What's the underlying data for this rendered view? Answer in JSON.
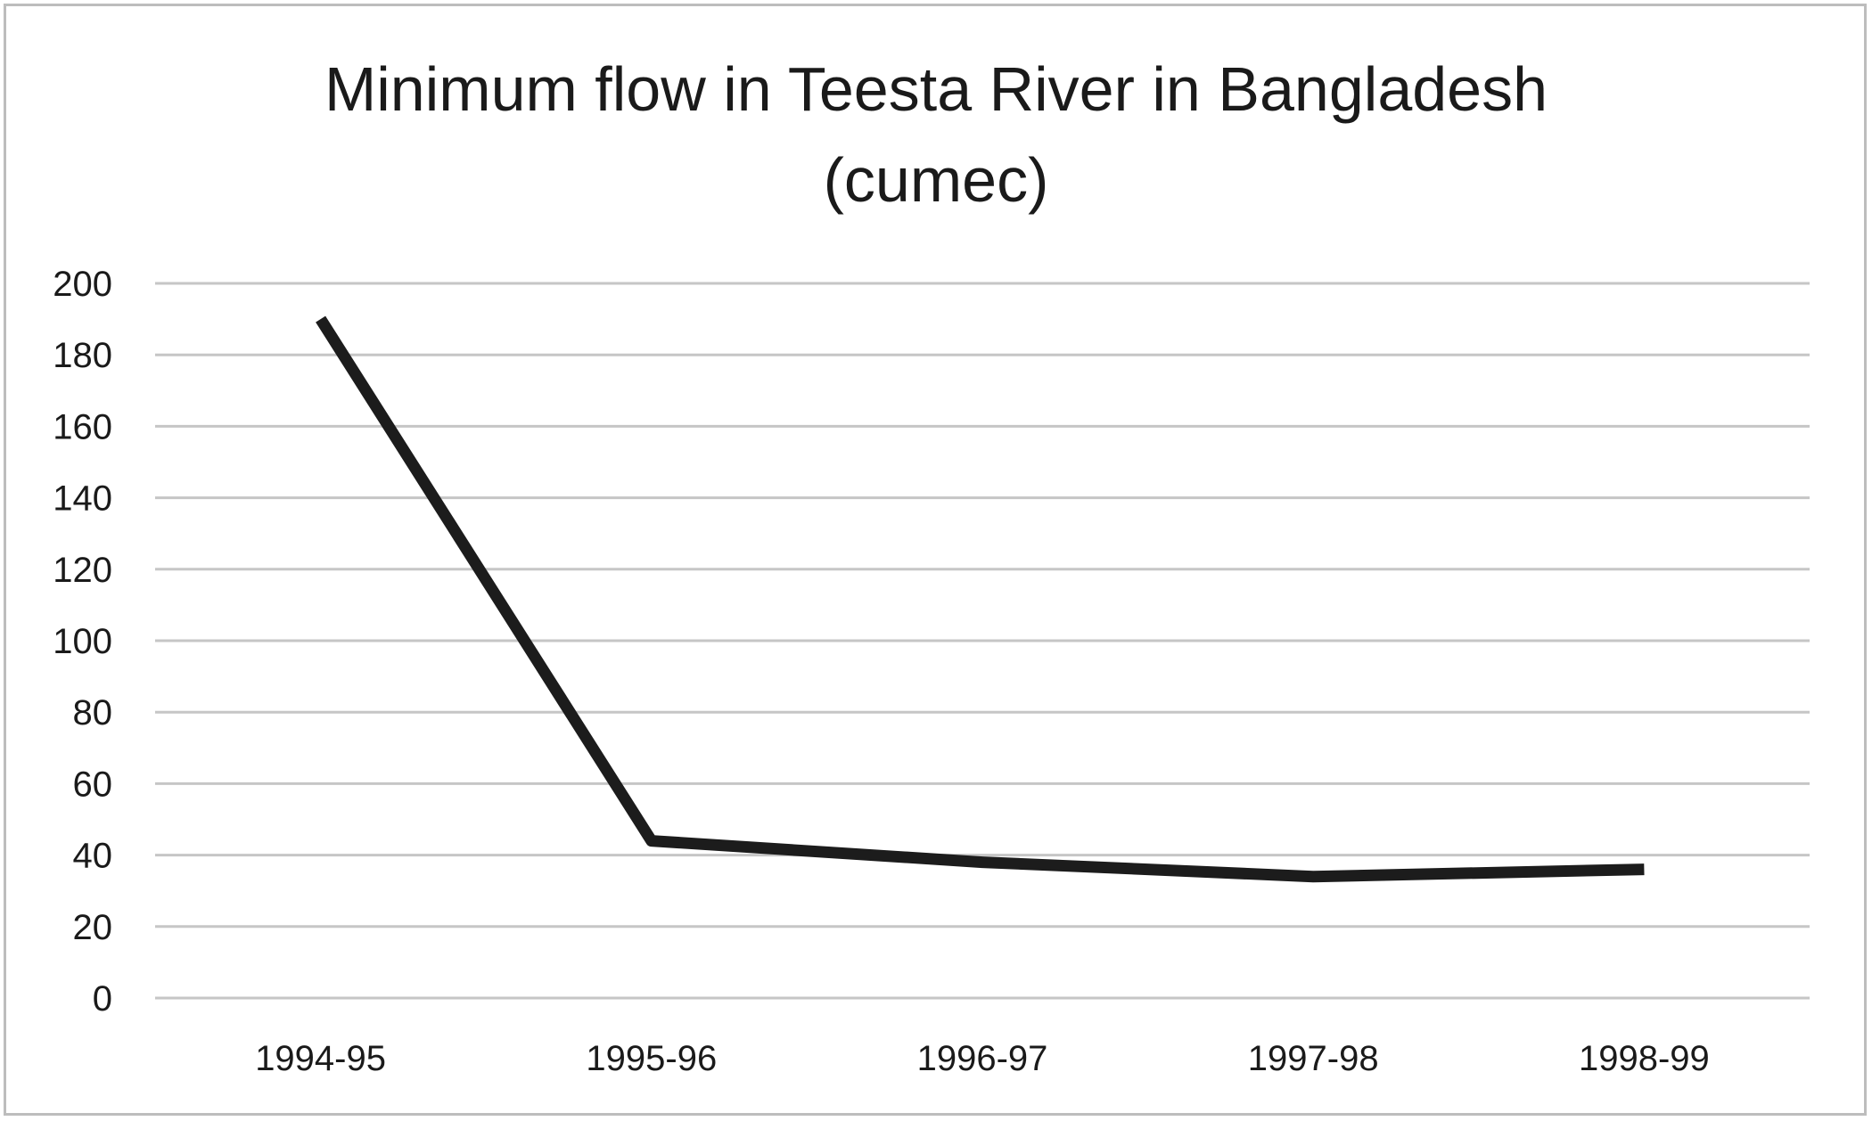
{
  "chart_data": {
    "type": "line",
    "title_lines": [
      "Minimum flow in Teesta River in Bangladesh",
      "(cumec)"
    ],
    "categories": [
      "1994-95",
      "1995-96",
      "1996-97",
      "1997-98",
      "1998-99"
    ],
    "series": [
      {
        "values": [
          190,
          44,
          38,
          34,
          36
        ]
      }
    ],
    "xlabel": "",
    "ylabel": "",
    "ylim": [
      0,
      200
    ],
    "yticks": [
      "0",
      "20",
      "40",
      "60",
      "80",
      "100",
      "120",
      "140",
      "160",
      "180",
      "200"
    ],
    "grid": "horizontal",
    "legend": "none",
    "line_color": "#1c1c1c",
    "grid_color": "#c6c6c6"
  }
}
